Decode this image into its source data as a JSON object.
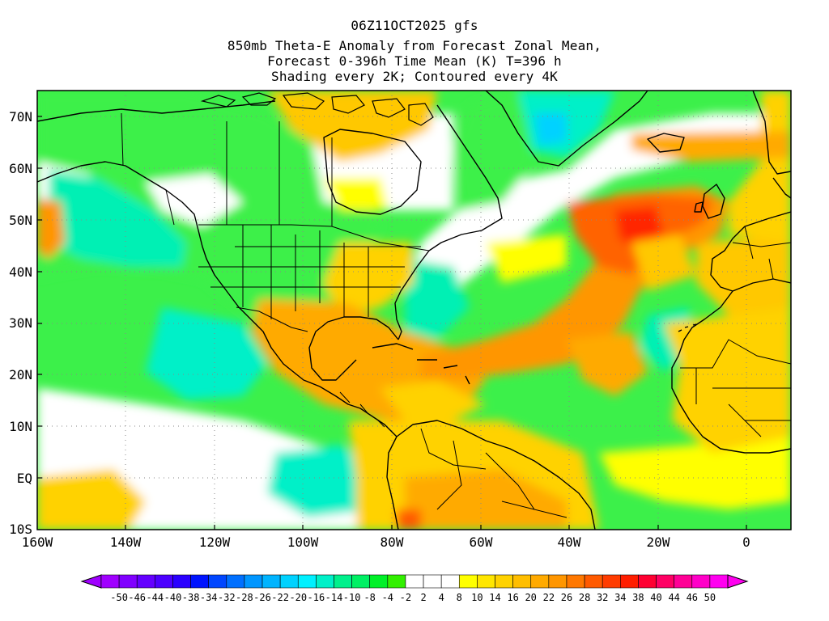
{
  "title": {
    "line1": "06Z11OCT2025 gfs",
    "line2": "850mb Theta-E Anomaly from Forecast Zonal Mean,",
    "line3": "Forecast 0-396h Time Mean (K) T=396 h",
    "line4": "Shading every 2K; Contoured every 4K"
  },
  "map": {
    "projection": "latitude-longitude",
    "lon_range": [
      -160,
      10
    ],
    "lat_range": [
      -10,
      75
    ],
    "lat_ticks": [
      {
        "value": 70,
        "label": "70N"
      },
      {
        "value": 60,
        "label": "60N"
      },
      {
        "value": 50,
        "label": "50N"
      },
      {
        "value": 40,
        "label": "40N"
      },
      {
        "value": 30,
        "label": "30N"
      },
      {
        "value": 20,
        "label": "20N"
      },
      {
        "value": 10,
        "label": "10N"
      },
      {
        "value": 0,
        "label": "EQ"
      },
      {
        "value": -10,
        "label": "10S"
      }
    ],
    "lon_ticks": [
      {
        "value": -160,
        "label": "160W"
      },
      {
        "value": -140,
        "label": "140W"
      },
      {
        "value": -120,
        "label": "120W"
      },
      {
        "value": -100,
        "label": "100W"
      },
      {
        "value": -80,
        "label": "80W"
      },
      {
        "value": -60,
        "label": "60W"
      },
      {
        "value": -40,
        "label": "40W"
      },
      {
        "value": -20,
        "label": "20W"
      },
      {
        "value": 0,
        "label": "0"
      }
    ],
    "gridlines": "dotted",
    "features": [
      "coastlines",
      "country borders",
      "US state borders"
    ]
  },
  "colorbar": {
    "labels": [
      "-50",
      "-46",
      "-44",
      "-40",
      "-38",
      "-34",
      "-32",
      "-28",
      "-26",
      "-22",
      "-20",
      "-16",
      "-14",
      "-10",
      "-8",
      "-4",
      "-2",
      "2",
      "4",
      "8",
      "10",
      "14",
      "16",
      "20",
      "22",
      "26",
      "28",
      "32",
      "34",
      "38",
      "40",
      "44",
      "46",
      "50"
    ],
    "colors": [
      "#a000ff",
      "#8000ff",
      "#6400ff",
      "#4c00ff",
      "#2a00ff",
      "#0014ff",
      "#0046ff",
      "#0070ff",
      "#0096ff",
      "#00b4ff",
      "#00d2ff",
      "#00f0ff",
      "#00f0c8",
      "#00f08c",
      "#00f064",
      "#00f028",
      "#32f000",
      "#ffffff",
      "#ffffff",
      "#ffffff",
      "#ffff00",
      "#ffe600",
      "#ffd200",
      "#ffbe00",
      "#ffaa00",
      "#ff9600",
      "#ff7800",
      "#ff5a00",
      "#ff3c00",
      "#ff1e00",
      "#ff0032",
      "#ff0064",
      "#ff0096",
      "#ff00c8",
      "#ff00f0"
    ]
  }
}
